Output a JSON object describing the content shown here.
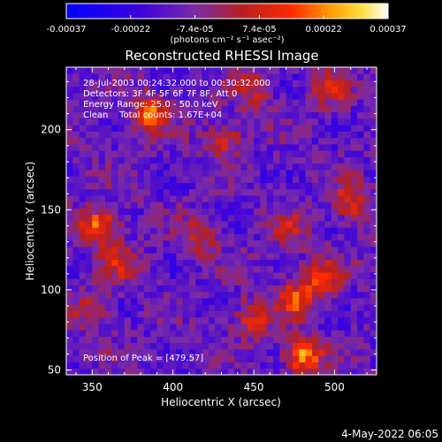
{
  "chart_data": {
    "type": "heatmap",
    "title": "Reconstructed RHESSI Image",
    "xlabel": "Heliocentric X (arcsec)",
    "ylabel": "Heliocentric Y (arcsec)",
    "xlim": [
      334,
      526
    ],
    "ylim": [
      47,
      239
    ],
    "x_ticks": [
      350,
      400,
      450,
      500
    ],
    "y_ticks": [
      50,
      100,
      150,
      200
    ],
    "x_tick_labels": [
      "350",
      "400",
      "450",
      "500"
    ],
    "y_tick_labels": [
      "50",
      "100",
      "150",
      "200"
    ],
    "colorbar": {
      "min": -0.00037,
      "max": 0.00037,
      "tick_labels": [
        "-0.00037",
        "-0.00022",
        "-7.4e-05",
        "7.4e-05",
        "0.00022",
        "0.00037"
      ],
      "units": "(photons cm⁻² s⁻¹ asec⁻²)"
    },
    "annotations": [
      "28-Jul-2003 00:24:32.000 to 00:30:32.000",
      "Detectors: 3F 4F 5F 6F 7F 8F, Att 0",
      "Energy Range: 25.0 - 50.0 keV",
      "Clean    Total counts: 1.67E+04",
      "Position of Peak = [479,57]"
    ],
    "peak": [
      479,
      57
    ],
    "sources": [
      {
        "x": 384,
        "y": 208,
        "amp": 0.0003
      },
      {
        "x": 353,
        "y": 138,
        "amp": 0.00032
      },
      {
        "x": 365,
        "y": 115,
        "amp": 0.00018
      },
      {
        "x": 430,
        "y": 192,
        "amp": 0.0002
      },
      {
        "x": 448,
        "y": 222,
        "amp": 0.00017
      },
      {
        "x": 495,
        "y": 224,
        "amp": 0.00018
      },
      {
        "x": 508,
        "y": 153,
        "amp": 0.00024
      },
      {
        "x": 413,
        "y": 130,
        "amp": 0.00016
      },
      {
        "x": 470,
        "y": 135,
        "amp": 0.00015
      },
      {
        "x": 474,
        "y": 92,
        "amp": 0.00024
      },
      {
        "x": 490,
        "y": 105,
        "amp": 0.00025
      },
      {
        "x": 479,
        "y": 57,
        "amp": 0.00037
      },
      {
        "x": 447,
        "y": 80,
        "amp": 0.0002
      },
      {
        "x": 347,
        "y": 86,
        "amp": 0.00015
      }
    ],
    "pixel_size_arcsec": 4,
    "colormap": "blue-purple-red-yellow-white (IDL color table)"
  },
  "footer": {
    "date": "4-May-2022 06:05"
  }
}
